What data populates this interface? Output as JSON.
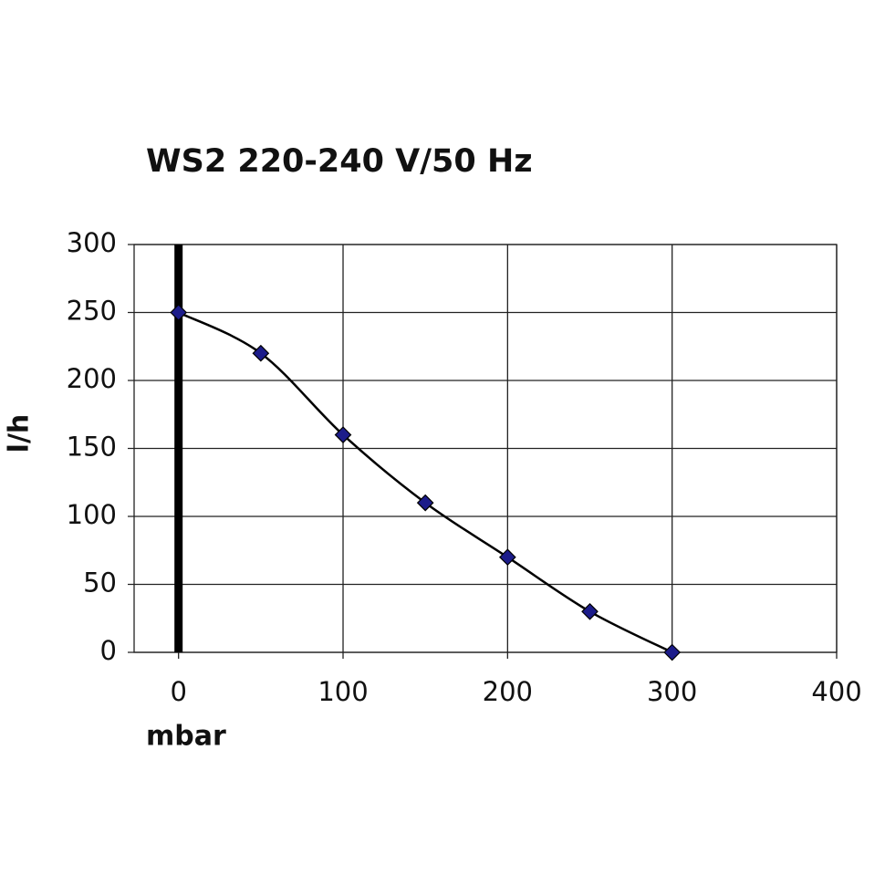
{
  "chart_data": {
    "type": "line",
    "title": "WS2 220-240 V/50 Hz",
    "x_label": "mbar",
    "y_label": "l/h",
    "x": [
      0,
      50,
      100,
      150,
      200,
      250,
      300
    ],
    "values": [
      250,
      220,
      160,
      110,
      70,
      30,
      0
    ],
    "color": "#000000",
    "marker_color": "#1c1c8a",
    "xlim": [
      -27,
      400
    ],
    "xticks": [
      0,
      100,
      200,
      300,
      400
    ],
    "ylim": [
      0,
      300
    ],
    "yticks": [
      0,
      50,
      100,
      150,
      200,
      250,
      300
    ],
    "grid": true
  }
}
